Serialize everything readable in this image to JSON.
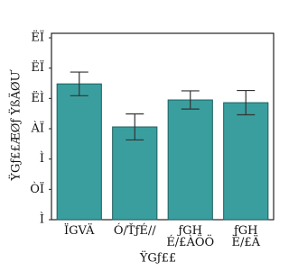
{
  "chart_data": {
    "type": "bar",
    "xlabel": "ŸGƒ££",
    "ylabel": "ŸGƒ££ÆØƒ ŸßÄØƯ",
    "categories": [
      [
        "ÏGVÄ"
      ],
      [
        "Ó/ŤƒÉ//"
      ],
      [
        "ƒGH",
        "É/£ÀÖÖ"
      ],
      [
        "ƒGH",
        "É/£Ä"
      ]
    ],
    "values": [
      4.48,
      3.06,
      3.95,
      3.86
    ],
    "errors": [
      0.39,
      0.43,
      0.3,
      0.4
    ],
    "color": "#3a9e9e",
    "ylim": [
      0,
      6
    ],
    "yticks": [
      {
        "value": 0,
        "label": "Ì"
      },
      {
        "value": 1,
        "label": "ÒÏ"
      },
      {
        "value": 2,
        "label": "Ì"
      },
      {
        "value": 3,
        "label": "ÀÏ"
      },
      {
        "value": 4,
        "label": "ËÌ"
      },
      {
        "value": 5,
        "label": "ËÏ"
      },
      {
        "value": 6,
        "label": "ËÏ"
      }
    ]
  }
}
